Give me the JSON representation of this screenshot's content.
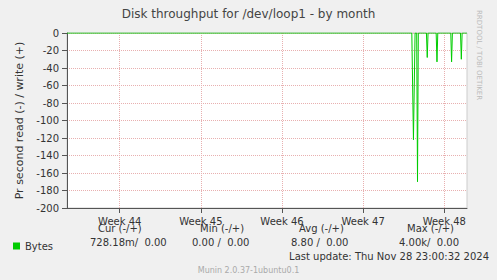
{
  "chart_data": {
    "type": "line",
    "title": "Disk throughput for /dev/loop1 - by month",
    "y_label": "Pr second read (-) / write (+)",
    "x": [
      43.35,
      47.6,
      47.62,
      47.64,
      47.66,
      47.67,
      47.68,
      47.78,
      47.79,
      47.8,
      47.9,
      47.91,
      47.92,
      48.08,
      48.09,
      48.1,
      48.2,
      48.21,
      48.22,
      48.28
    ],
    "series": [
      {
        "name": "Bytes",
        "color": "#00cc00",
        "values": [
          0,
          0,
          -122,
          0,
          0,
          -170,
          0,
          0,
          -28,
          0,
          0,
          -33,
          0,
          0,
          -33,
          0,
          0,
          -30,
          0,
          0
        ]
      }
    ],
    "xlim": [
      43.35,
      48.28
    ],
    "xticks": [
      {
        "value": 44,
        "label": "Week 44"
      },
      {
        "value": 45,
        "label": "Week 45"
      },
      {
        "value": 46,
        "label": "Week 46"
      },
      {
        "value": 47,
        "label": "Week 47"
      },
      {
        "value": 48,
        "label": "Week 48"
      }
    ],
    "ylim": [
      -200,
      0
    ],
    "yticks": [
      -200,
      -180,
      -160,
      -140,
      -120,
      -100,
      -80,
      -60,
      -40,
      -20,
      0
    ],
    "grid": true,
    "legend": "lower left",
    "annotations": {
      "stats_headers": [
        "Cur (-/+)",
        "Min (-/+)",
        "Avg (-/+)",
        "Max (-/+)"
      ],
      "stats_row": [
        "728.18m/  0.00",
        "0.00 /  0.00",
        "8.80 /  0.00",
        "4.00k/  0.00"
      ],
      "last_update": "Last update: Thu Nov 28 23:00:32 2024",
      "credit": "Munin 2.0.37-1ubuntu0.1",
      "side_text": "RRDTOOL / TOBI OETIKER"
    }
  }
}
